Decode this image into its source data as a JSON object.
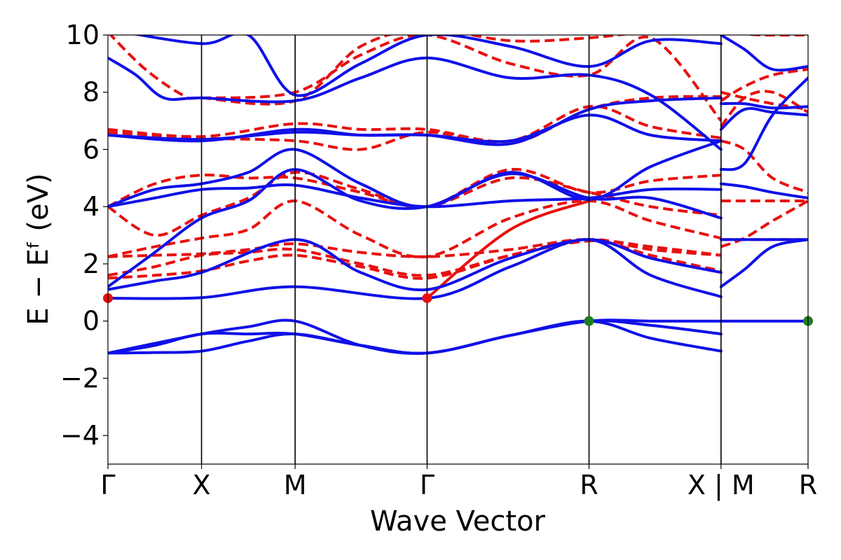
{
  "chart_data": {
    "type": "line",
    "title": "",
    "xlabel": "Wave Vector",
    "ylabel": "E − Eᶠ (eV)",
    "ylim": [
      -5,
      10
    ],
    "yticks": [
      -4,
      -2,
      0,
      2,
      4,
      6,
      8,
      10
    ],
    "ytick_labels": [
      "−4",
      "−2",
      "0",
      "2",
      "4",
      "6",
      "8",
      "10"
    ],
    "xlim": [
      0,
      7.48
    ],
    "kpoints": [
      {
        "label": "Γ",
        "x": 0.0
      },
      {
        "label": "X",
        "x": 1.0
      },
      {
        "label": "M",
        "x": 2.0
      },
      {
        "label": "Γ",
        "x": 3.41
      },
      {
        "label": "R",
        "x": 5.14
      },
      {
        "label": "X | M",
        "x": 6.55
      },
      {
        "label": "R",
        "x": 7.48
      }
    ],
    "grid": false,
    "legend": "none",
    "colors": {
      "valence": "#1010e8",
      "conduction": "#e8100f",
      "vbm": "#1e7d1e",
      "cbm": "#e8100f"
    },
    "series": [
      {
        "style": "solid",
        "color": "#1010e8",
        "x": [
          0,
          0.5,
          1.0,
          1.5,
          2.0,
          2.7,
          3.41,
          4.3,
          5.14,
          5.8,
          6.55
        ],
        "y": [
          -1.12,
          -0.85,
          -0.45,
          -0.45,
          -0.45,
          -0.85,
          -1.12,
          -0.5,
          0.0,
          -0.15,
          -0.45
        ]
      },
      {
        "style": "solid",
        "color": "#1010e8",
        "x": [
          0,
          0.5,
          1.0,
          1.5,
          2.0,
          2.7,
          3.41,
          4.3,
          5.14,
          5.8,
          6.55
        ],
        "y": [
          -1.12,
          -1.1,
          -1.05,
          -0.7,
          -0.45,
          -0.85,
          -1.12,
          -0.5,
          0.0,
          -0.6,
          -1.05
        ]
      },
      {
        "style": "solid",
        "color": "#1010e8",
        "x": [
          0,
          1.0,
          1.5,
          2.0,
          2.7,
          3.41,
          4.3,
          5.14,
          5.8,
          6.55
        ],
        "y": [
          -1.12,
          -0.45,
          -0.2,
          0.0,
          -0.85,
          -1.12,
          -0.5,
          0.0,
          0.0,
          0.0
        ]
      },
      {
        "style": "solid",
        "color": "#1010e8",
        "x": [
          0,
          1.0,
          2.0,
          3.41,
          4.3,
          5.14,
          5.8,
          6.55
        ],
        "y": [
          0.8,
          0.82,
          1.2,
          0.8,
          1.9,
          2.85,
          1.6,
          0.85
        ]
      },
      {
        "style": "solid",
        "color": "#1010e8",
        "x": [
          0,
          0.5,
          1.0,
          2.0,
          2.7,
          3.41,
          4.3,
          5.14,
          5.8,
          6.55
        ],
        "y": [
          1.1,
          1.4,
          1.7,
          2.85,
          1.7,
          1.1,
          2.2,
          2.85,
          2.2,
          1.7
        ]
      },
      {
        "style": "solid",
        "color": "#1010e8",
        "x": [
          0,
          0.5,
          1.0,
          1.5,
          2.0,
          2.7,
          3.41,
          4.3,
          5.14,
          5.8,
          6.55
        ],
        "y": [
          1.2,
          2.4,
          3.6,
          4.2,
          5.3,
          4.2,
          4.0,
          5.15,
          4.3,
          4.3,
          3.6
        ]
      },
      {
        "style": "solid",
        "color": "#1010e8",
        "x": [
          0,
          0.5,
          1.0,
          1.5,
          2.0,
          2.7,
          3.41,
          4.3,
          5.14,
          5.8,
          6.55
        ],
        "y": [
          4.0,
          4.3,
          4.6,
          4.65,
          4.75,
          4.3,
          4.0,
          4.2,
          4.3,
          4.6,
          4.6
        ]
      },
      {
        "style": "solid",
        "color": "#1010e8",
        "x": [
          0,
          0.5,
          1.0,
          1.5,
          2.0,
          2.7,
          3.41,
          4.3,
          5.14,
          5.8,
          6.55
        ],
        "y": [
          4.0,
          4.6,
          4.8,
          5.2,
          6.0,
          4.8,
          4.0,
          5.2,
          4.25,
          5.4,
          6.3
        ]
      },
      {
        "style": "solid",
        "color": "#1010e8",
        "x": [
          0,
          1.0,
          2.0,
          2.7,
          3.41,
          4.3,
          5.14,
          5.8,
          6.55
        ],
        "y": [
          6.5,
          6.3,
          6.7,
          6.5,
          6.5,
          6.3,
          7.2,
          6.5,
          6.3
        ]
      },
      {
        "style": "solid",
        "color": "#1010e8",
        "x": [
          0,
          1.0,
          2.0,
          2.7,
          3.41,
          4.3,
          5.14,
          5.8,
          6.55
        ],
        "y": [
          6.5,
          6.35,
          6.6,
          6.5,
          6.5,
          6.2,
          7.4,
          7.7,
          7.8
        ]
      },
      {
        "style": "solid",
        "color": "#1010e8",
        "x": [
          0,
          0.3,
          0.6,
          1.0,
          2.0,
          2.7,
          3.41,
          4.3,
          5.14,
          5.8,
          6.55
        ],
        "y": [
          9.2,
          8.6,
          7.8,
          7.8,
          7.7,
          8.5,
          9.2,
          8.5,
          8.6,
          7.9,
          6.0
        ]
      },
      {
        "style": "solid",
        "color": "#1010e8",
        "x": [
          0,
          1.0,
          1.5,
          2.0,
          2.7,
          3.41,
          4.3,
          5.14,
          5.8,
          6.55
        ],
        "y": [
          10.2,
          9.7,
          10.0,
          7.9,
          9.0,
          10.0,
          9.6,
          8.9,
          9.8,
          9.7
        ]
      },
      {
        "style": "solid",
        "color": "#1010e8",
        "x": [
          6.55,
          6.8,
          7.1,
          7.48
        ],
        "y": [
          0.0,
          0.0,
          0.0,
          0.0
        ]
      },
      {
        "style": "solid",
        "color": "#1010e8",
        "x": [
          6.55,
          6.8,
          7.1,
          7.48
        ],
        "y": [
          1.2,
          1.8,
          2.6,
          2.85
        ]
      },
      {
        "style": "solid",
        "color": "#1010e8",
        "x": [
          6.55,
          6.8,
          7.1,
          7.48
        ],
        "y": [
          2.85,
          2.85,
          2.85,
          2.85
        ]
      },
      {
        "style": "solid",
        "color": "#1010e8",
        "x": [
          6.55,
          6.8,
          7.1,
          7.48
        ],
        "y": [
          4.8,
          4.7,
          4.5,
          4.3
        ]
      },
      {
        "style": "solid",
        "color": "#1010e8",
        "x": [
          6.55,
          6.8,
          7.1,
          7.48
        ],
        "y": [
          5.3,
          5.5,
          7.2,
          8.5
        ]
      },
      {
        "style": "solid",
        "color": "#1010e8",
        "x": [
          6.55,
          6.8,
          7.1,
          7.48
        ],
        "y": [
          6.7,
          7.4,
          7.3,
          7.2
        ]
      },
      {
        "style": "solid",
        "color": "#1010e8",
        "x": [
          6.55,
          6.8,
          7.1,
          7.48
        ],
        "y": [
          7.6,
          7.6,
          7.45,
          7.5
        ]
      },
      {
        "style": "solid",
        "color": "#1010e8",
        "x": [
          6.55,
          6.8,
          7.1,
          7.48
        ],
        "y": [
          10.0,
          9.5,
          8.8,
          8.9
        ]
      },
      {
        "style": "dashed",
        "color": "#e8100f",
        "x": [
          0,
          0.5,
          1.0,
          1.5,
          2.0,
          2.7,
          3.41,
          4.3,
          5.14,
          5.8,
          6.55
        ],
        "y": [
          1.5,
          1.6,
          1.75,
          2.1,
          2.3,
          1.9,
          1.5,
          2.3,
          2.85,
          2.5,
          2.3
        ]
      },
      {
        "style": "dashed",
        "color": "#e8100f",
        "x": [
          0,
          0.5,
          1.0,
          1.5,
          2.0,
          2.7,
          3.41,
          4.3,
          5.14,
          5.8,
          6.55
        ],
        "y": [
          1.6,
          1.9,
          2.3,
          2.4,
          2.5,
          2.0,
          1.6,
          2.3,
          2.8,
          2.6,
          2.3
        ]
      },
      {
        "style": "dashed",
        "color": "#e8100f",
        "x": [
          0,
          0.5,
          1.0,
          1.5,
          2.0,
          2.7,
          3.41,
          4.3,
          5.14,
          5.8,
          6.55
        ],
        "y": [
          2.25,
          2.3,
          2.35,
          2.5,
          2.7,
          2.4,
          2.25,
          2.5,
          2.85,
          2.3,
          1.75
        ]
      },
      {
        "style": "dashed",
        "color": "#e8100f",
        "x": [
          0,
          0.5,
          1.0,
          1.5,
          2.0,
          2.7,
          3.41,
          4.3,
          5.14,
          5.8,
          6.55
        ],
        "y": [
          2.25,
          2.6,
          2.9,
          3.2,
          4.2,
          3.0,
          2.25,
          3.6,
          4.2,
          3.5,
          2.9
        ]
      },
      {
        "style": "dashed",
        "color": "#e8100f",
        "x": [
          0,
          0.5,
          1.0,
          1.5,
          2.0,
          2.7,
          3.41,
          4.3,
          5.14,
          5.8,
          6.55
        ],
        "y": [
          4.0,
          3.0,
          3.7,
          4.3,
          5.2,
          4.6,
          4.0,
          5.3,
          4.5,
          4.9,
          5.1
        ]
      },
      {
        "style": "dashed",
        "color": "#e8100f",
        "x": [
          0,
          0.5,
          1.0,
          1.5,
          2.0,
          2.7,
          3.41,
          4.3,
          5.14,
          5.8,
          6.55
        ],
        "y": [
          4.0,
          4.8,
          5.1,
          5.0,
          5.0,
          4.5,
          4.0,
          5.0,
          4.5,
          4.0,
          3.7
        ]
      },
      {
        "style": "solid",
        "color": "#e8100f",
        "x": [
          3.41,
          4.3,
          5.14
        ],
        "y": [
          0.8,
          3.2,
          4.2
        ]
      },
      {
        "style": "dashed",
        "color": "#e8100f",
        "x": [
          0,
          1.0,
          2.0,
          2.7,
          3.41,
          4.3,
          5.14,
          5.8,
          6.55
        ],
        "y": [
          6.7,
          6.45,
          6.9,
          6.7,
          6.7,
          6.3,
          7.5,
          6.8,
          6.4
        ]
      },
      {
        "style": "dashed",
        "color": "#e8100f",
        "x": [
          0,
          1.0,
          2.0,
          2.7,
          3.41,
          4.3,
          5.14,
          5.8,
          6.55
        ],
        "y": [
          6.6,
          6.4,
          6.3,
          6.0,
          6.6,
          6.2,
          7.4,
          7.8,
          7.85
        ]
      },
      {
        "style": "dashed",
        "color": "#e8100f",
        "x": [
          0,
          0.4,
          0.8,
          1.0,
          2.0,
          2.7,
          3.41,
          4.3,
          5.14,
          5.8,
          6.55
        ],
        "y": [
          10.1,
          8.8,
          7.9,
          7.8,
          8.0,
          9.3,
          10.0,
          9.0,
          8.6,
          9.9,
          7.0
        ]
      },
      {
        "style": "dashed",
        "color": "#e8100f",
        "x": [
          1.0,
          2.0,
          2.7,
          3.41,
          4.3,
          5.14,
          6.0,
          6.55
        ],
        "y": [
          7.8,
          7.7,
          9.6,
          10.2,
          9.8,
          9.9,
          10.2,
          10.2
        ]
      },
      {
        "style": "dashed",
        "color": "#e8100f",
        "x": [
          6.55,
          6.8,
          7.1,
          7.48
        ],
        "y": [
          2.6,
          2.9,
          3.5,
          4.2
        ]
      },
      {
        "style": "dashed",
        "color": "#e8100f",
        "x": [
          6.55,
          6.8,
          7.1,
          7.48
        ],
        "y": [
          2.85,
          2.85,
          2.85,
          2.85
        ]
      },
      {
        "style": "dashed",
        "color": "#e8100f",
        "x": [
          6.55,
          6.8,
          7.1,
          7.48
        ],
        "y": [
          4.2,
          4.2,
          4.2,
          4.2
        ]
      },
      {
        "style": "dashed",
        "color": "#e8100f",
        "x": [
          6.55,
          6.8,
          7.1,
          7.48
        ],
        "y": [
          6.3,
          6.0,
          5.0,
          4.5
        ]
      },
      {
        "style": "dashed",
        "color": "#e8100f",
        "x": [
          6.55,
          6.8,
          7.1,
          7.48
        ],
        "y": [
          6.8,
          7.8,
          8.0,
          7.3
        ]
      },
      {
        "style": "dashed",
        "color": "#e8100f",
        "x": [
          6.55,
          6.8,
          7.1,
          7.48
        ],
        "y": [
          8.0,
          7.8,
          7.6,
          7.4
        ]
      },
      {
        "style": "dashed",
        "color": "#e8100f",
        "x": [
          6.55,
          6.8,
          7.1,
          7.48
        ],
        "y": [
          7.7,
          8.2,
          8.6,
          8.8
        ]
      },
      {
        "style": "dashed",
        "color": "#e8100f",
        "x": [
          6.55,
          7.0,
          7.48
        ],
        "y": [
          10.1,
          10.0,
          10.0
        ]
      }
    ],
    "markers": [
      {
        "type": "cbm",
        "x": 0.0,
        "y": 0.8,
        "color": "#e8100f"
      },
      {
        "type": "cbm",
        "x": 3.41,
        "y": 0.8,
        "color": "#e8100f"
      },
      {
        "type": "vbm",
        "x": 5.14,
        "y": 0.0,
        "color": "#1e7d1e"
      },
      {
        "type": "vbm",
        "x": 7.48,
        "y": 0.0,
        "color": "#1e7d1e"
      }
    ]
  }
}
